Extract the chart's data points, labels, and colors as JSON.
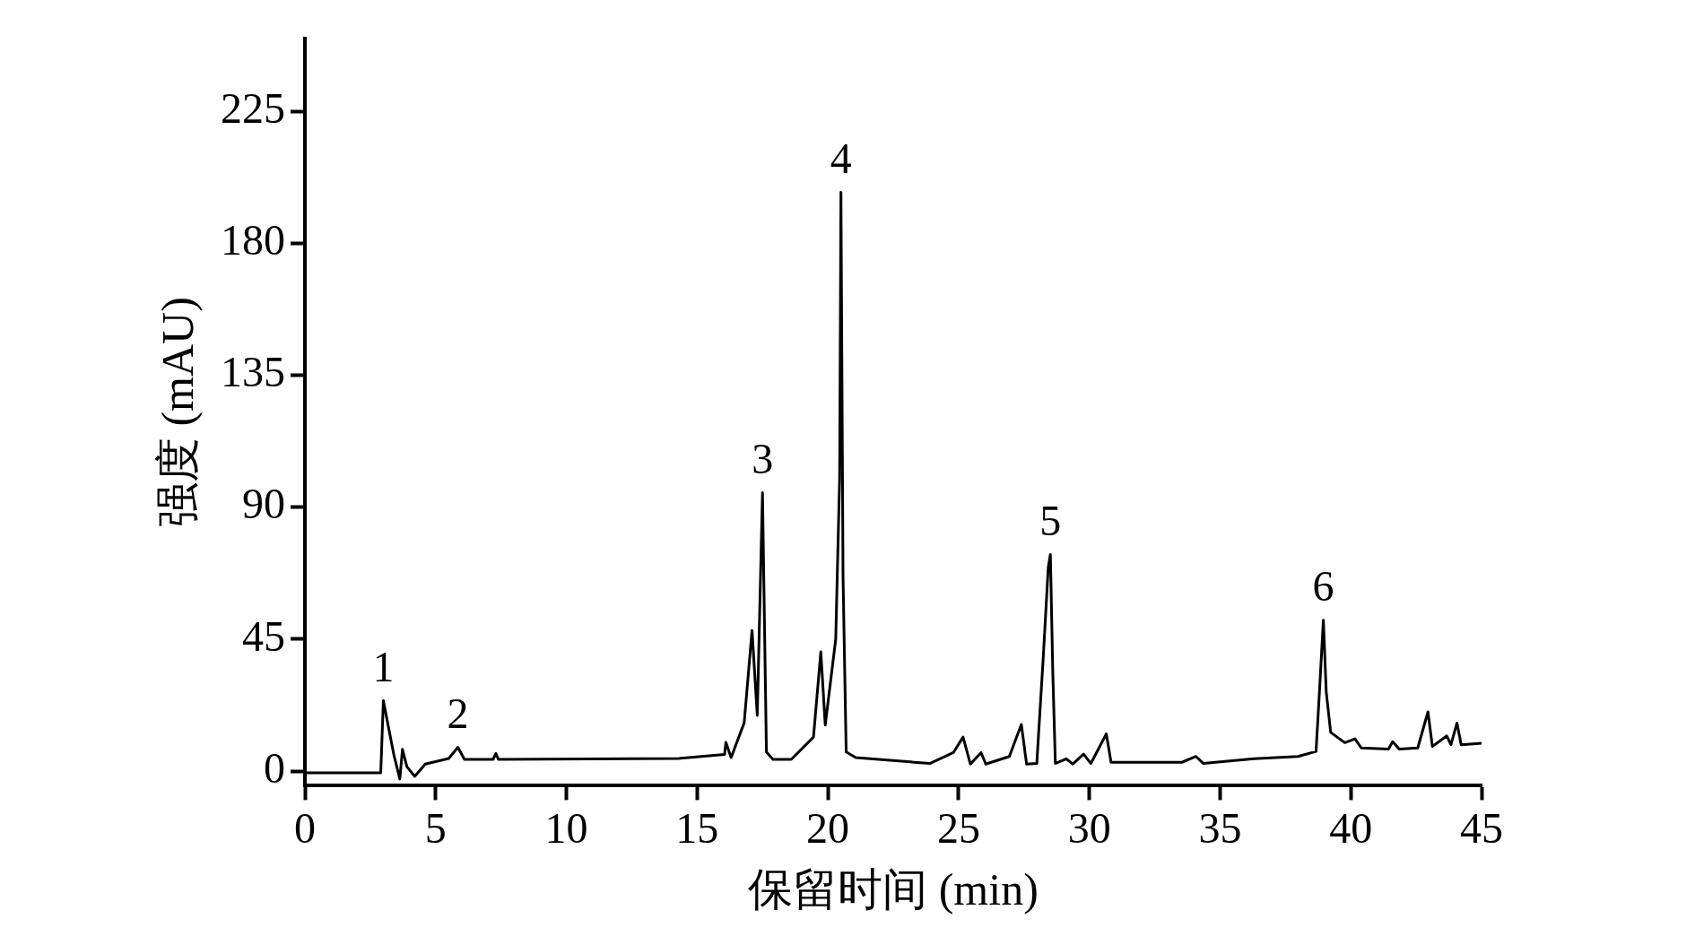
{
  "chart_data": {
    "type": "line",
    "xlabel": "保留时间 (min)",
    "ylabel": "强度 (mAU)",
    "xlim": [
      0,
      45
    ],
    "xticks": [
      0,
      5,
      10,
      15,
      20,
      25,
      30,
      35,
      40,
      45
    ],
    "ylim": [
      -5,
      250
    ],
    "yticks": [
      0,
      45,
      90,
      135,
      180,
      225
    ],
    "grid": false,
    "legend": false,
    "marker": "none",
    "line_style": "solid",
    "series": [
      {
        "color": "#000000",
        "x": [
          0,
          2.9,
          3.0,
          3.4,
          3.63,
          3.73,
          3.9,
          4.2,
          4.6,
          5.5,
          5.85,
          6.1,
          7.2,
          7.3,
          7.4,
          14.3,
          16.05,
          16.1,
          16.3,
          16.8,
          17.1,
          17.3,
          17.5,
          17.65,
          17.9,
          18.6,
          19.45,
          19.73,
          19.9,
          20.3,
          20.45,
          20.5,
          20.58,
          20.7,
          21.07,
          23.9,
          24.8,
          25.17,
          25.45,
          25.86,
          26.04,
          26.94,
          27.4,
          27.6,
          27.99,
          28.23,
          28.43,
          28.51,
          28.6,
          28.7,
          29.12,
          29.37,
          29.78,
          30.06,
          30.65,
          30.83,
          33.54,
          34.08,
          34.36,
          36.3,
          37.98,
          38.67,
          38.8,
          38.95,
          39.06,
          39.23,
          39.77,
          40.16,
          40.4,
          41.44,
          41.6,
          41.85,
          42.56,
          42.95,
          43.12,
          43.67,
          43.83,
          44.06,
          44.22,
          45
        ],
        "values": [
          -0.6,
          -0.6,
          24,
          5.6,
          -2.7,
          7.4,
          1.5,
          -1.8,
          2.4,
          4.3,
          8.1,
          4,
          4,
          6,
          4,
          4.3,
          5.7,
          9.8,
          4.6,
          16.5,
          48,
          19,
          95,
          6.5,
          4,
          4,
          11.6,
          40.7,
          15.7,
          45,
          100,
          197.5,
          66.5,
          6.5,
          4.6,
          2.6,
          6.3,
          11.6,
          2.4,
          6.3,
          2.4,
          5,
          15.9,
          2.4,
          2.6,
          37.7,
          69.6,
          73.9,
          34.5,
          2.6,
          4.2,
          2.4,
          5.8,
          2.6,
          12.7,
          3,
          3,
          5,
          2.6,
          4.2,
          5,
          6.7,
          27,
          51.5,
          27,
          13.2,
          9.7,
          11,
          7.9,
          7.5,
          10,
          7.5,
          7.9,
          20.2,
          8.4,
          12,
          9,
          16.4,
          9,
          9.5
        ]
      }
    ],
    "annotations": [
      {
        "text": "1",
        "x": 3.0,
        "y": 24
      },
      {
        "text": "2",
        "x": 5.85,
        "y": 8.1
      },
      {
        "text": "3",
        "x": 17.5,
        "y": 95
      },
      {
        "text": "4",
        "x": 20.5,
        "y": 197.5
      },
      {
        "text": "5",
        "x": 28.51,
        "y": 73.9
      },
      {
        "text": "6",
        "x": 38.95,
        "y": 51.5
      }
    ]
  }
}
